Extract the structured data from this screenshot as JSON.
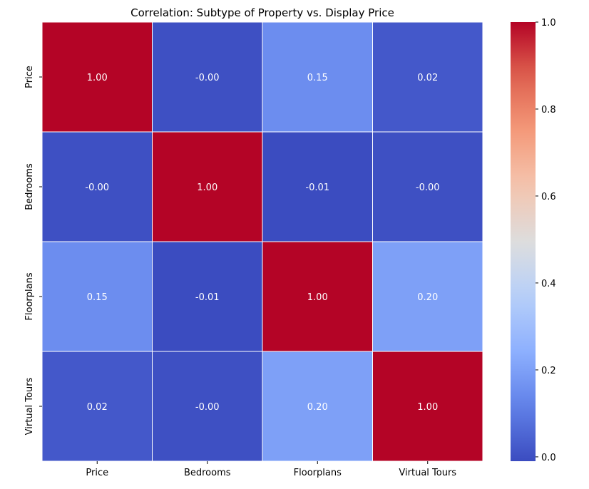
{
  "chart_data": {
    "type": "heatmap",
    "title": "Correlation: Subtype of Property vs. Display Price",
    "row_labels": [
      "Price",
      "Bedrooms",
      "Floorplans",
      "Virtual Tours"
    ],
    "col_labels": [
      "Price",
      "Bedrooms",
      "Floorplans",
      "Virtual Tours"
    ],
    "values": [
      [
        1.0,
        -0.0,
        0.15,
        0.02
      ],
      [
        -0.0,
        1.0,
        -0.01,
        -0.0
      ],
      [
        0.15,
        -0.01,
        1.0,
        0.2
      ],
      [
        0.02,
        -0.0,
        0.2,
        1.0
      ]
    ],
    "cell_text": [
      [
        "1.00",
        "-0.00",
        "0.15",
        "0.02"
      ],
      [
        "-0.00",
        "1.00",
        "-0.01",
        "-0.00"
      ],
      [
        "0.15",
        "-0.01",
        "1.00",
        "0.20"
      ],
      [
        "0.02",
        "-0.00",
        "0.20",
        "1.00"
      ]
    ],
    "colormap": "coolwarm",
    "vmin": -0.01,
    "vmax": 1.0,
    "colorbar_ticks": [
      "0.0",
      "0.2",
      "0.4",
      "0.6",
      "0.8",
      "1.0"
    ],
    "colorbar_tick_values": [
      0.0,
      0.2,
      0.4,
      0.6,
      0.8,
      1.0
    ],
    "xlabel": "",
    "ylabel": ""
  }
}
